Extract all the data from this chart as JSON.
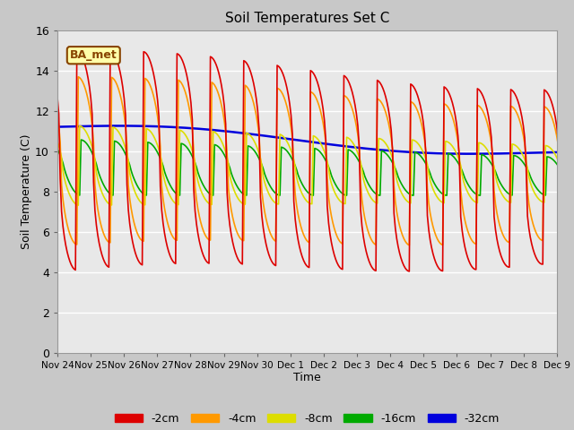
{
  "title": "Soil Temperatures Set C",
  "xlabel": "Time",
  "ylabel": "Soil Temperature (C)",
  "ylim": [
    0,
    16
  ],
  "yticks": [
    0,
    2,
    4,
    6,
    8,
    10,
    12,
    14,
    16
  ],
  "fig_bg_color": "#c8c8c8",
  "plot_bg_color": "#e8e8e8",
  "legend_items": [
    "-2cm",
    "-4cm",
    "-8cm",
    "-16cm",
    "-32cm"
  ],
  "legend_colors": [
    "#dd0000",
    "#ff9900",
    "#dddd00",
    "#00aa00",
    "#0000dd"
  ],
  "annotation_text": "BA_met",
  "annotation_bg": "#ffffaa",
  "annotation_border": "#884400",
  "x_tick_labels": [
    "Nov 24",
    "Nov 25",
    "Nov 26",
    "Nov 27",
    "Nov 28",
    "Nov 29",
    "Nov 30",
    "Dec 1",
    "Dec 2",
    "Dec 3",
    "Dec 4",
    "Dec 5",
    "Dec 6",
    "Dec 7",
    "Dec 8",
    "Dec 9"
  ],
  "line_colors": {
    "-2cm": "#dd0000",
    "-4cm": "#ff9900",
    "-8cm": "#dddd00",
    "-16cm": "#00aa00",
    "-32cm": "#0000dd"
  },
  "line_widths": {
    "-2cm": 1.2,
    "-4cm": 1.2,
    "-8cm": 1.2,
    "-16cm": 1.2,
    "-32cm": 1.8
  }
}
